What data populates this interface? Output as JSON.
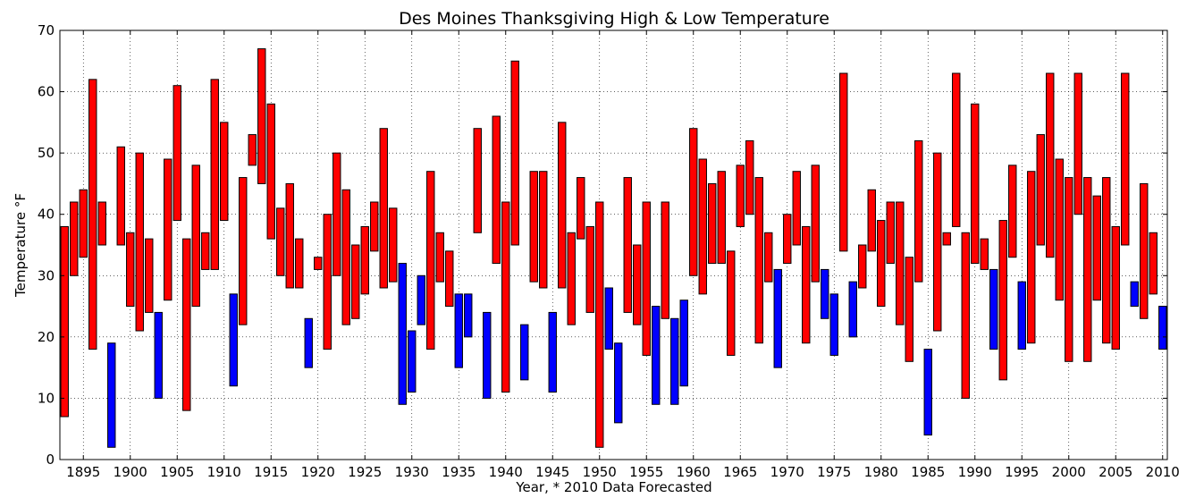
{
  "chart_data": {
    "type": "bar",
    "title": "Des Moines Thanksgiving High & Low Temperature",
    "xlabel": "Year, * 2010 Data Forecasted",
    "ylabel": "Temperature °F",
    "ylim": [
      0,
      70
    ],
    "xlim": [
      1892.5,
      2010.5
    ],
    "grid": true,
    "x_ticks": [
      1895,
      1900,
      1905,
      1910,
      1915,
      1920,
      1925,
      1930,
      1935,
      1940,
      1945,
      1950,
      1955,
      1960,
      1965,
      1970,
      1975,
      1980,
      1985,
      1990,
      1995,
      2000,
      2005,
      2010
    ],
    "y_ticks": [
      0,
      10,
      20,
      30,
      40,
      50,
      60,
      70
    ],
    "colors": {
      "above_freezing_high": "#ff0000",
      "below_freezing_high": "#0000ff",
      "edge": "#000000"
    },
    "series": [
      {
        "name": "",
        "x": [
          1893,
          1894,
          1895,
          1896,
          1897,
          1898,
          1899,
          1900,
          1901,
          1902,
          1903,
          1904,
          1905,
          1906,
          1907,
          1908,
          1909,
          1910,
          1911,
          1912,
          1913,
          1914,
          1915,
          1916,
          1917,
          1918,
          1919,
          1920,
          1921,
          1922,
          1923,
          1924,
          1925,
          1926,
          1927,
          1928,
          1929,
          1930,
          1931,
          1932,
          1933,
          1934,
          1935,
          1936,
          1937,
          1938,
          1939,
          1940,
          1941,
          1942,
          1943,
          1944,
          1945,
          1946,
          1947,
          1948,
          1949,
          1950,
          1951,
          1952,
          1953,
          1954,
          1955,
          1956,
          1957,
          1958,
          1959,
          1960,
          1961,
          1962,
          1963,
          1964,
          1965,
          1966,
          1967,
          1968,
          1969,
          1970,
          1971,
          1972,
          1973,
          1974,
          1975,
          1976,
          1977,
          1978,
          1979,
          1980,
          1981,
          1982,
          1983,
          1984,
          1985,
          1986,
          1987,
          1988,
          1989,
          1990,
          1991,
          1992,
          1993,
          1994,
          1995,
          1996,
          1997,
          1998,
          1999,
          2000,
          2001,
          2002,
          2003,
          2004,
          2005,
          2006,
          2007,
          2008,
          2009,
          2010
        ],
        "low": [
          7,
          30,
          33,
          18,
          35,
          2,
          35,
          25,
          21,
          24,
          10,
          26,
          39,
          8,
          25,
          31,
          31,
          39,
          12,
          22,
          48,
          45,
          36,
          30,
          28,
          28,
          15,
          31,
          18,
          30,
          22,
          23,
          27,
          34,
          28,
          29,
          9,
          11,
          22,
          18,
          29,
          25,
          15,
          20,
          37,
          10,
          32,
          11,
          35,
          13,
          29,
          28,
          11,
          28,
          22,
          36,
          24,
          2,
          18,
          6,
          24,
          22,
          17,
          9,
          23,
          9,
          12,
          30,
          27,
          32,
          32,
          17,
          38,
          40,
          19,
          29,
          15,
          32,
          35,
          19,
          29,
          23,
          17,
          34,
          20,
          28,
          34,
          25,
          32,
          22,
          16,
          29,
          4,
          21,
          35,
          38,
          10,
          32,
          31,
          18,
          13,
          33,
          18,
          19,
          35,
          33,
          26,
          16,
          40,
          16,
          26,
          19,
          18,
          35,
          25,
          23,
          27,
          18
        ],
        "high": [
          38,
          42,
          44,
          62,
          42,
          19,
          51,
          37,
          50,
          36,
          24,
          49,
          61,
          36,
          48,
          37,
          62,
          55,
          27,
          46,
          53,
          67,
          58,
          41,
          45,
          36,
          23,
          33,
          40,
          50,
          44,
          35,
          38,
          42,
          54,
          41,
          32,
          21,
          30,
          47,
          37,
          34,
          27,
          27,
          54,
          24,
          56,
          42,
          65,
          22,
          47,
          47,
          24,
          55,
          37,
          46,
          38,
          42,
          28,
          19,
          46,
          35,
          42,
          25,
          42,
          23,
          26,
          54,
          49,
          45,
          47,
          34,
          48,
          52,
          46,
          37,
          31,
          40,
          47,
          38,
          48,
          31,
          27,
          63,
          29,
          35,
          44,
          39,
          42,
          42,
          33,
          52,
          18,
          50,
          37,
          63,
          37,
          58,
          36,
          31,
          39,
          48,
          29,
          47,
          53,
          63,
          49,
          46,
          63,
          46,
          43,
          46,
          38,
          63,
          29,
          45,
          37,
          25
        ]
      }
    ]
  }
}
